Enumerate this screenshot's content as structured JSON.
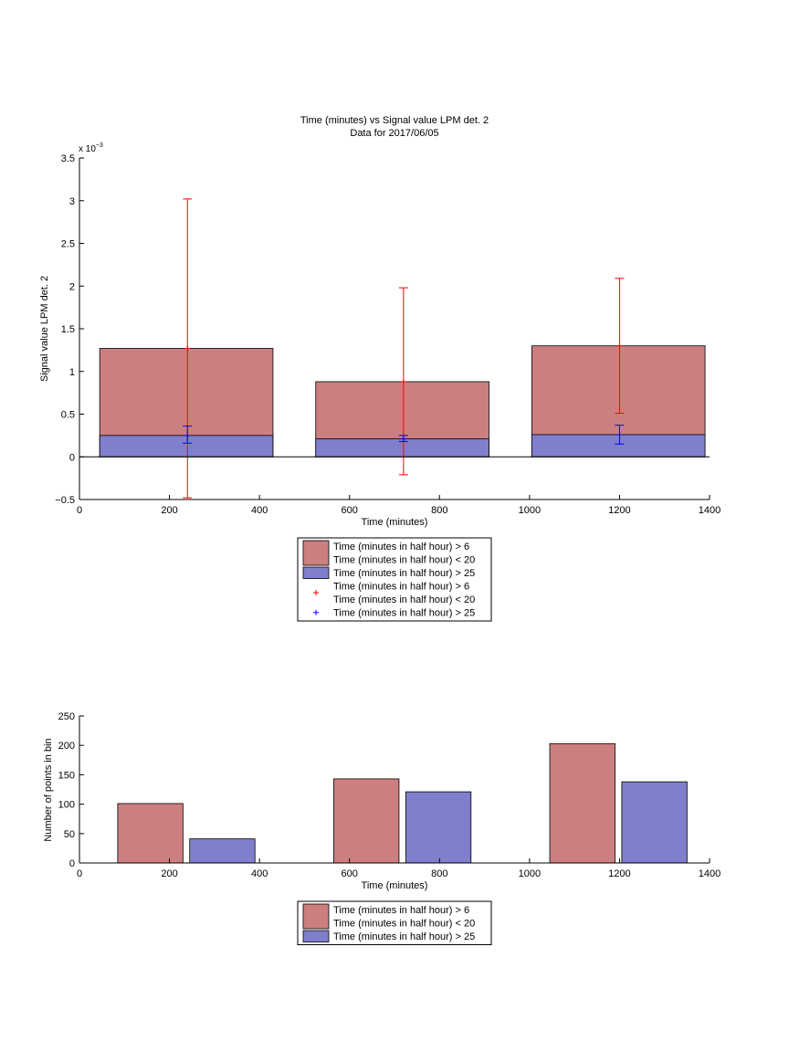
{
  "colors": {
    "red_fill": "#cc7f7f",
    "blue_fill": "#7f7fcc",
    "red_err": "#ff0000",
    "blue_err": "#0000ff",
    "axis": "#000000"
  },
  "chart_data": [
    {
      "type": "bar",
      "title": "Time (minutes) vs Signal value LPM det. 2",
      "subtitle": "Data for 2017/06/05",
      "xlabel": "Time (minutes)",
      "ylabel": "Signal value LPM det. 2",
      "exponent_label": "x 10",
      "exponent_power": "−3",
      "xlim": [
        0,
        1400
      ],
      "ylim": [
        -0.5,
        3.5
      ],
      "xticks": [
        "0",
        "200",
        "400",
        "600",
        "800",
        "1000",
        "1200",
        "1400"
      ],
      "yticks": [
        "−0.5",
        "0",
        "0.5",
        "1",
        "1.5",
        "2",
        "2.5",
        "3",
        "3.5"
      ],
      "bar_ranges": [
        [
          45,
          430
        ],
        [
          525,
          910
        ],
        [
          1005,
          1390
        ]
      ],
      "bars": [
        {
          "series": "red",
          "values": [
            1.27,
            0.88,
            1.3
          ]
        },
        {
          "series": "blue",
          "values": [
            0.25,
            0.21,
            0.26
          ]
        }
      ],
      "errorbars": [
        {
          "series": "red",
          "x": [
            240,
            720,
            1200
          ],
          "mean": [
            1.27,
            0.88,
            1.3
          ],
          "lower": [
            -0.48,
            -0.21,
            0.51
          ],
          "upper": [
            3.02,
            1.98,
            2.09
          ]
        },
        {
          "series": "blue",
          "x": [
            240,
            720,
            1200
          ],
          "mean": [
            0.25,
            0.21,
            0.26
          ],
          "lower": [
            0.16,
            0.18,
            0.15
          ],
          "upper": [
            0.36,
            0.25,
            0.37
          ]
        }
      ],
      "legend": {
        "placement": "below",
        "entries": [
          {
            "kind": "patch",
            "series": "red",
            "lines": [
              "Time (minutes in half hour) > 6",
              "Time (minutes in half hour) < 20"
            ]
          },
          {
            "kind": "patch",
            "series": "blue",
            "lines": [
              "Time (minutes in half hour) > 25"
            ]
          },
          {
            "kind": "marker",
            "series": "red",
            "lines": [
              "Time (minutes in half hour) > 6",
              "Time (minutes in half hour) < 20"
            ]
          },
          {
            "kind": "marker",
            "series": "blue",
            "lines": [
              "Time (minutes in half hour) > 25"
            ]
          }
        ]
      }
    },
    {
      "type": "bar",
      "xlabel": "Time (minutes)",
      "ylabel": "Number of points in bin",
      "xlim": [
        0,
        1400
      ],
      "ylim": [
        0,
        250
      ],
      "xticks": [
        "0",
        "200",
        "400",
        "600",
        "800",
        "1000",
        "1200",
        "1400"
      ],
      "yticks": [
        "0",
        "50",
        "100",
        "150",
        "200",
        "250"
      ],
      "bar_ranges": [
        [
          85,
          230
        ],
        [
          245,
          390
        ],
        [
          565,
          710
        ],
        [
          725,
          870
        ],
        [
          1045,
          1190
        ],
        [
          1205,
          1350
        ]
      ],
      "bars": [
        {
          "series": "red",
          "values": [
            101,
            0,
            143,
            0,
            203,
            0
          ]
        },
        {
          "series": "blue",
          "values": [
            0,
            41,
            0,
            121,
            0,
            138
          ]
        }
      ],
      "legend": {
        "placement": "below",
        "entries": [
          {
            "kind": "patch",
            "series": "red",
            "lines": [
              "Time (minutes in half hour) > 6",
              "Time (minutes in half hour) < 20"
            ]
          },
          {
            "kind": "patch",
            "series": "blue",
            "lines": [
              "Time (minutes in half hour) > 25"
            ]
          }
        ]
      }
    }
  ]
}
